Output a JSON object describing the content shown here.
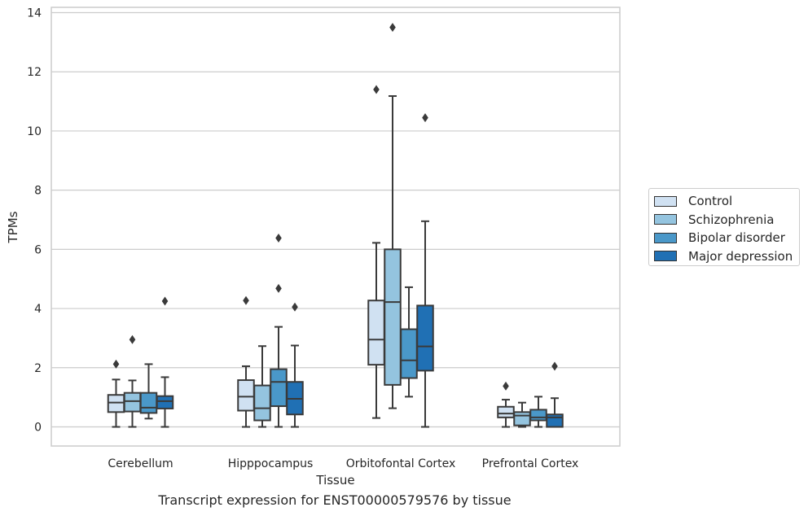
{
  "caption": "Transcript expression for ENST00000579576 by tissue",
  "chart_data": {
    "type": "box",
    "title": "",
    "xlabel": "Tissue",
    "ylabel": "TPMs",
    "ylim": [
      -0.6,
      14.2
    ],
    "yticks": [
      "0",
      "2",
      "4",
      "6",
      "8",
      "10",
      "12",
      "14"
    ],
    "grid": "horizontal",
    "legend_position": "right",
    "categories": [
      "Cerebellum",
      "Hipppocampus",
      "Orbitofontal Cortex",
      "Prefrontal Cortex"
    ],
    "series": [
      {
        "name": "Control",
        "color": "#d0e1f2",
        "boxes": [
          {
            "min": 0,
            "q1": 0.5,
            "median": 0.82,
            "q3": 1.08,
            "max": 1.6,
            "outliers": [
              2.12
            ]
          },
          {
            "min": 0,
            "q1": 0.55,
            "median": 1.02,
            "q3": 1.58,
            "max": 2.05,
            "outliers": [
              4.27
            ]
          },
          {
            "min": 0.3,
            "q1": 2.1,
            "median": 2.95,
            "q3": 4.27,
            "max": 6.22,
            "outliers": [
              11.4
            ]
          },
          {
            "min": 0,
            "q1": 0.32,
            "median": 0.45,
            "q3": 0.68,
            "max": 0.92,
            "outliers": [
              1.38
            ]
          }
        ]
      },
      {
        "name": "Schizophrenia",
        "color": "#94c4df",
        "boxes": [
          {
            "min": 0,
            "q1": 0.52,
            "median": 0.87,
            "q3": 1.15,
            "max": 1.57,
            "outliers": [
              2.95
            ]
          },
          {
            "min": 0,
            "q1": 0.22,
            "median": 0.63,
            "q3": 1.4,
            "max": 2.73,
            "outliers": []
          },
          {
            "min": 0.63,
            "q1": 1.42,
            "median": 4.22,
            "q3": 6.0,
            "max": 11.18,
            "outliers": [
              13.5
            ]
          },
          {
            "min": 0,
            "q1": 0.05,
            "median": 0.38,
            "q3": 0.5,
            "max": 0.82,
            "outliers": []
          }
        ]
      },
      {
        "name": "Bipolar disorder",
        "color": "#4a98c9",
        "boxes": [
          {
            "min": 0.28,
            "q1": 0.47,
            "median": 0.65,
            "q3": 1.15,
            "max": 2.12,
            "outliers": []
          },
          {
            "min": 0,
            "q1": 0.7,
            "median": 1.52,
            "q3": 1.95,
            "max": 3.38,
            "outliers": [
              6.38,
              4.68
            ]
          },
          {
            "min": 1.02,
            "q1": 1.65,
            "median": 2.25,
            "q3": 3.3,
            "max": 4.72,
            "outliers": []
          },
          {
            "min": 0,
            "q1": 0.22,
            "median": 0.32,
            "q3": 0.58,
            "max": 1.02,
            "outliers": []
          }
        ]
      },
      {
        "name": "Major depression",
        "color": "#2070b4",
        "boxes": [
          {
            "min": 0,
            "q1": 0.62,
            "median": 0.87,
            "q3": 1.04,
            "max": 1.68,
            "outliers": [
              4.25
            ]
          },
          {
            "min": 0,
            "q1": 0.42,
            "median": 0.95,
            "q3": 1.52,
            "max": 2.75,
            "outliers": [
              4.05
            ]
          },
          {
            "min": 0,
            "q1": 1.9,
            "median": 2.72,
            "q3": 4.1,
            "max": 6.95,
            "outliers": [
              10.45
            ]
          },
          {
            "min": 0,
            "q1": 0,
            "median": 0.32,
            "q3": 0.42,
            "max": 0.97,
            "outliers": [
              2.05
            ]
          }
        ]
      }
    ]
  }
}
